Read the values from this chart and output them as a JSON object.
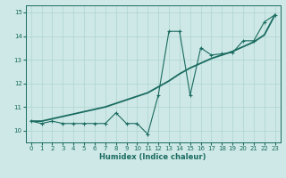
{
  "xlabel": "Humidex (Indice chaleur)",
  "bg_color": "#cde8e6",
  "line_color": "#1a6b60",
  "grid_color": "#aed4d1",
  "xlim": [
    -0.5,
    23.5
  ],
  "ylim": [
    9.5,
    15.3
  ],
  "xticks": [
    0,
    1,
    2,
    3,
    4,
    5,
    6,
    7,
    8,
    9,
    10,
    11,
    12,
    13,
    14,
    15,
    16,
    17,
    18,
    19,
    20,
    21,
    22,
    23
  ],
  "yticks": [
    10,
    11,
    12,
    13,
    14,
    15
  ],
  "line1_x": [
    0,
    1,
    2,
    3,
    4,
    5,
    6,
    7,
    8,
    9,
    10,
    11,
    12,
    13,
    14,
    15,
    16,
    17,
    18,
    19,
    20,
    21,
    22,
    23
  ],
  "line1_y": [
    10.4,
    10.3,
    10.4,
    10.3,
    10.3,
    10.3,
    10.3,
    10.3,
    10.75,
    10.3,
    10.3,
    9.85,
    11.5,
    14.2,
    14.2,
    11.5,
    13.5,
    13.2,
    13.25,
    13.3,
    13.8,
    13.8,
    14.6,
    14.9
  ],
  "line2_x": [
    0,
    1,
    2,
    3,
    4,
    5,
    6,
    7,
    8,
    9,
    10,
    11,
    12,
    13,
    14,
    15,
    16,
    17,
    18,
    19,
    20,
    21,
    22,
    23
  ],
  "line2_y": [
    10.4,
    10.4,
    10.5,
    10.6,
    10.7,
    10.8,
    10.9,
    11.0,
    11.15,
    11.3,
    11.45,
    11.6,
    11.85,
    12.1,
    12.4,
    12.65,
    12.85,
    13.05,
    13.2,
    13.35,
    13.55,
    13.75,
    14.05,
    14.9
  ]
}
